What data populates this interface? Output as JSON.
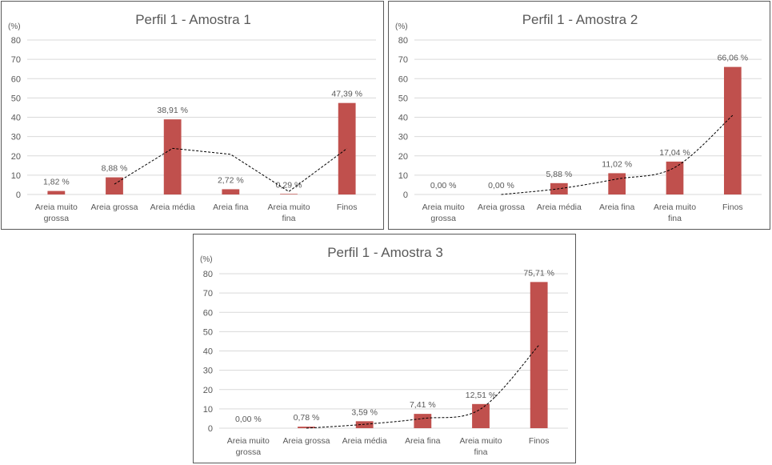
{
  "colors": {
    "bar": "#c0504d",
    "text": "#595959",
    "grid": "#d9d9d9",
    "trend": "#000000"
  },
  "chart_data": [
    {
      "type": "bar",
      "title": "Perfil 1 - Amostra 1",
      "ylabel": "(%)",
      "xlabel": "",
      "ylim": [
        0,
        80
      ],
      "yticks": [
        0,
        10,
        20,
        30,
        40,
        50,
        60,
        70,
        80
      ],
      "grid": true,
      "categories": [
        [
          "Areia muito",
          "grossa"
        ],
        [
          "Areia grossa"
        ],
        [
          "Areia média"
        ],
        [
          "Areia fina"
        ],
        [
          "Areia muito",
          "fina"
        ],
        [
          "Finos"
        ]
      ],
      "values": [
        1.82,
        8.88,
        38.91,
        2.72,
        0.29,
        47.39
      ],
      "data_labels": [
        "1,82 %",
        "8,88 %",
        "38,91 %",
        "2,72 %",
        "0,29 %",
        "47,39 %"
      ],
      "trendline": {
        "style": "dashed",
        "type": "moving-average",
        "values": [
          null,
          5.35,
          23.9,
          20.8,
          1.5,
          23.8
        ]
      }
    },
    {
      "type": "bar",
      "title": "Perfil 1 - Amostra 2",
      "ylabel": "(%)",
      "xlabel": "",
      "ylim": [
        0,
        80
      ],
      "yticks": [
        0,
        10,
        20,
        30,
        40,
        50,
        60,
        70,
        80
      ],
      "grid": true,
      "categories": [
        [
          "Areia muito",
          "grossa"
        ],
        [
          "Areia grossa"
        ],
        [
          "Areia média"
        ],
        [
          "Areia fina"
        ],
        [
          "Areia muito",
          "fina"
        ],
        [
          "Finos"
        ]
      ],
      "values": [
        0.0,
        0.0,
        5.88,
        11.02,
        17.04,
        66.06
      ],
      "data_labels": [
        "0,00 %",
        "0,00 %",
        "5,88 %",
        "11,02 %",
        "17,04 %",
        "66,06 %"
      ],
      "trendline": {
        "style": "dashed",
        "type": "curve",
        "values": [
          null,
          0,
          3,
          8,
          14,
          41
        ]
      }
    },
    {
      "type": "bar",
      "title": "Perfil 1 - Amostra 3",
      "ylabel": "(%)",
      "xlabel": "",
      "ylim": [
        0,
        80
      ],
      "yticks": [
        0,
        10,
        20,
        30,
        40,
        50,
        60,
        70,
        80
      ],
      "grid": true,
      "categories": [
        [
          "Areia muito",
          "grossa"
        ],
        [
          "Areia grossa"
        ],
        [
          "Areia média"
        ],
        [
          "Areia fina"
        ],
        [
          "Areia muito",
          "fina"
        ],
        [
          "Finos"
        ]
      ],
      "values": [
        0.0,
        0.78,
        3.59,
        7.41,
        12.51,
        75.71
      ],
      "data_labels": [
        "0,00 %",
        "0,78 %",
        "3,59 %",
        "7,41 %",
        "12,51 %",
        "75,71 %"
      ],
      "trendline": {
        "style": "dashed",
        "type": "curve",
        "values": [
          null,
          0,
          2,
          5,
          10,
          43
        ]
      }
    }
  ]
}
